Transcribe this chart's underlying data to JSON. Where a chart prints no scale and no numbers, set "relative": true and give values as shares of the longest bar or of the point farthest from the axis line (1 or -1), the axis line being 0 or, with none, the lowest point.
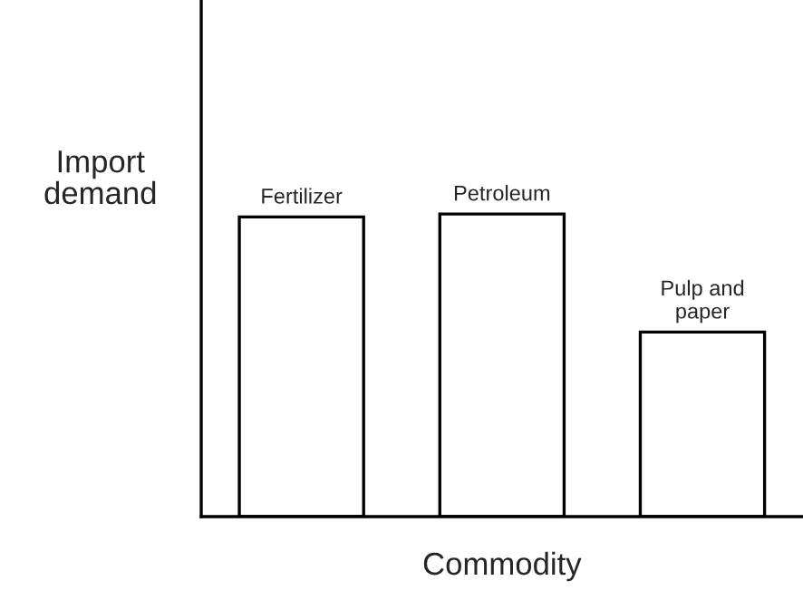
{
  "chart_data": {
    "type": "bar",
    "relative": true,
    "xlabel": "Commodity",
    "ylabel": "Import\ndemand",
    "categories": [
      "Fertilizer",
      "Petroleum",
      "Pulp and\npaper"
    ],
    "values": [
      0.99,
      1,
      0.61
    ],
    "color": "#ffffff"
  }
}
